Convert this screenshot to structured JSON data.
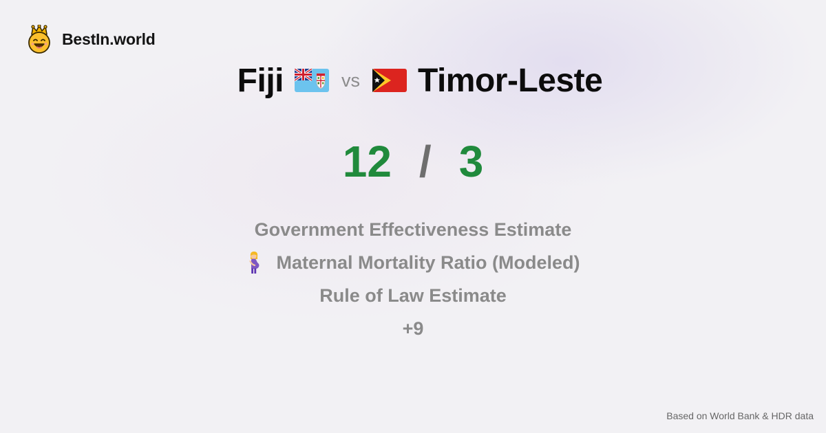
{
  "brand": {
    "name": "BestIn.world",
    "logo_icon": "smiling-crowned-face-icon"
  },
  "comparison": {
    "left_country": "Fiji",
    "left_flag_icon": "fiji-flag-icon",
    "vs_label": "vs",
    "right_country": "Timor-Leste",
    "right_flag_icon": "timor-leste-flag-icon"
  },
  "score": {
    "left": "12",
    "separator": "/",
    "right": "3",
    "color": "#208a3c"
  },
  "metrics": [
    {
      "label": "Government Effectiveness Estimate"
    },
    {
      "label": "Maternal Mortality Ratio (Modeled)",
      "icon": "pregnant-woman-icon"
    },
    {
      "label": "Rule of Law Estimate"
    },
    {
      "label": "+9"
    }
  ],
  "footer": {
    "source": "Based on World Bank & HDR data"
  }
}
